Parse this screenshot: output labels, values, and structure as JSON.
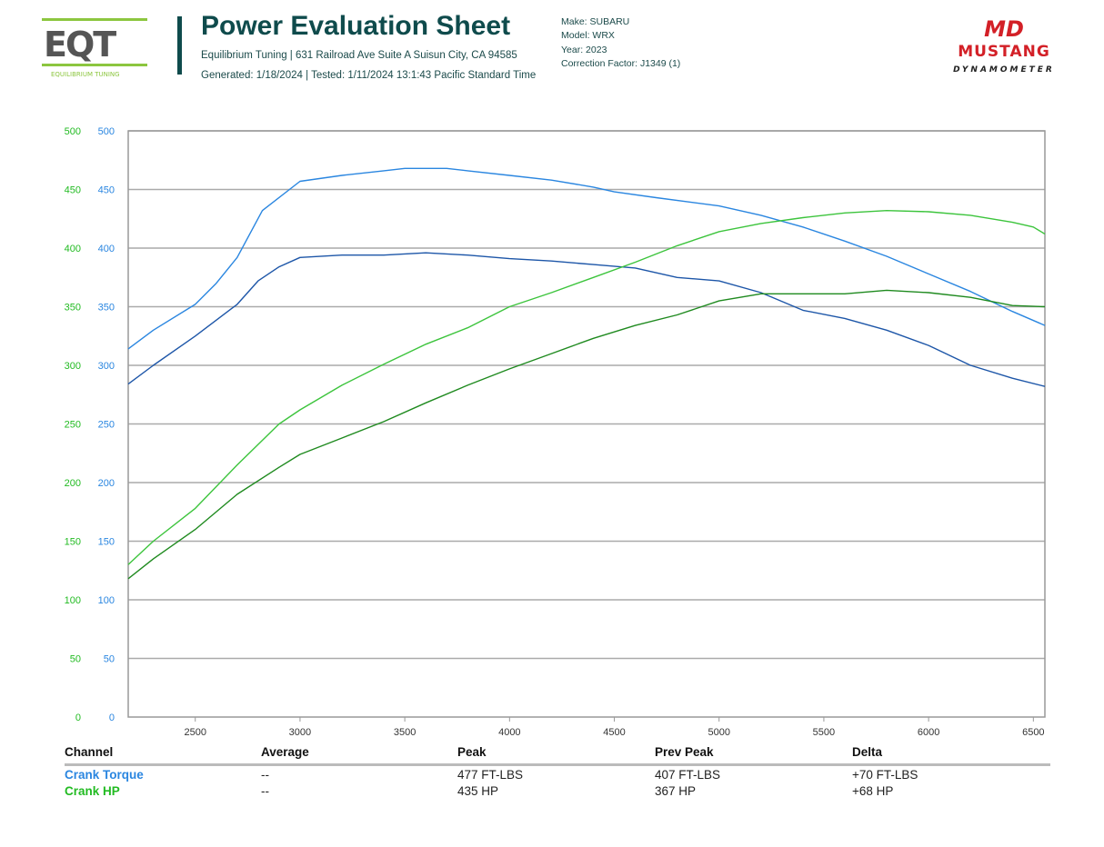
{
  "header": {
    "logo_left": {
      "text": "EQT",
      "tagline": "EQUILIBRIUM TUNING"
    },
    "title": "Power Evaluation Sheet",
    "address": "Equilibrium Tuning | 631 Railroad Ave Suite A Suisun City, CA 94585",
    "generated": "Generated: 1/18/2024 | Tested: 1/11/2024 13:1:43 Pacific Standard Time",
    "make": "Make: SUBARU",
    "model": "Model: WRX",
    "year": "Year: 2023",
    "correction": "Correction Factor: J1349 (1)",
    "logo_right": {
      "mark": "MD",
      "name": "MUSTANG",
      "sub": "DYNAMOMETER"
    }
  },
  "colors": {
    "torque": "#2a86e0",
    "torque_prev": "#1d56a8",
    "hp": "#3cc43c",
    "hp_prev": "#1f8a1f",
    "left_axis": "#22bb22",
    "right_axis": "#2a86e0",
    "title": "#0f4b4c"
  },
  "chart_data": {
    "type": "line",
    "xlim": [
      2180,
      6555
    ],
    "ylim": [
      0,
      500
    ],
    "x_ticks": [
      2500,
      3000,
      3500,
      4000,
      4500,
      5000,
      5500,
      6000,
      6500
    ],
    "y_ticks": [
      0,
      50,
      100,
      150,
      200,
      250,
      300,
      350,
      400,
      450,
      500
    ],
    "grid": true,
    "series": [
      {
        "key": "torque",
        "x": [
          2180,
          2300,
          2500,
          2600,
          2700,
          2820,
          3000,
          3200,
          3400,
          3500,
          3700,
          3800,
          4000,
          4200,
          4400,
          4500,
          4700,
          5000,
          5200,
          5400,
          5600,
          5800,
          6000,
          6200,
          6400,
          6555
        ],
        "y": [
          314,
          330,
          352,
          370,
          392,
          432,
          457,
          462,
          466,
          468,
          468,
          466,
          462,
          458,
          452,
          448,
          443,
          436,
          428,
          418,
          406,
          393,
          378,
          363,
          346,
          334
        ]
      },
      {
        "key": "torque_prev",
        "x": [
          2180,
          2300,
          2500,
          2700,
          2800,
          2900,
          3000,
          3200,
          3400,
          3600,
          3800,
          4000,
          4200,
          4400,
          4600,
          4800,
          5000,
          5200,
          5400,
          5600,
          5800,
          6000,
          6200,
          6400,
          6555
        ],
        "y": [
          284,
          300,
          325,
          352,
          372,
          384,
          392,
          394,
          394,
          396,
          394,
          391,
          389,
          386,
          383,
          375,
          372,
          362,
          347,
          340,
          330,
          317,
          300,
          289,
          282
        ]
      },
      {
        "key": "hp",
        "x": [
          2180,
          2300,
          2500,
          2700,
          2900,
          3000,
          3200,
          3400,
          3600,
          3800,
          4000,
          4200,
          4400,
          4600,
          4800,
          5000,
          5200,
          5400,
          5600,
          5800,
          6000,
          6200,
          6400,
          6500,
          6555
        ],
        "y": [
          130,
          150,
          178,
          215,
          250,
          262,
          283,
          301,
          318,
          332,
          350,
          362,
          375,
          388,
          402,
          414,
          421,
          426,
          430,
          432,
          431,
          428,
          422,
          418,
          412
        ]
      },
      {
        "key": "hp_prev",
        "x": [
          2180,
          2300,
          2500,
          2700,
          2900,
          3000,
          3200,
          3400,
          3600,
          3800,
          4000,
          4200,
          4400,
          4600,
          4800,
          5000,
          5200,
          5400,
          5600,
          5800,
          6000,
          6200,
          6400,
          6555
        ],
        "y": [
          118,
          135,
          160,
          190,
          213,
          224,
          238,
          252,
          268,
          283,
          297,
          310,
          323,
          334,
          343,
          355,
          361,
          361,
          361,
          364,
          362,
          358,
          351,
          350
        ]
      }
    ]
  },
  "table": {
    "headers": [
      "Channel",
      "Average",
      "Peak",
      "Prev Peak",
      "Delta"
    ],
    "rows": [
      {
        "channel": "Crank Torque",
        "average": "--",
        "peak": "477 FT-LBS",
        "prev_peak": "407 FT-LBS",
        "delta": "+70 FT-LBS"
      },
      {
        "channel": "Crank HP",
        "average": "--",
        "peak": "435 HP",
        "prev_peak": "367 HP",
        "delta": "+68 HP"
      }
    ]
  }
}
